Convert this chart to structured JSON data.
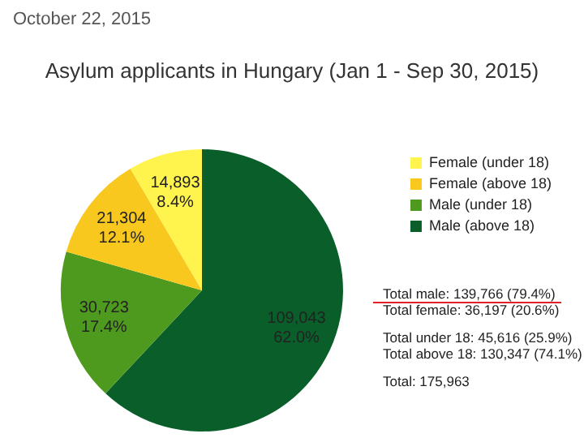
{
  "chart_data": {
    "type": "pie",
    "title": "Asylum applicants in Hungary (Jan 1 - Sep 30, 2015)",
    "subtitle": "October 22, 2015",
    "categories": [
      "Female (under 18)",
      "Female (above 18)",
      "Male (under 18)",
      "Male (above 18)"
    ],
    "values": [
      14893,
      21304,
      30723,
      109043
    ],
    "colors": [
      "#fff34d",
      "#f9c81e",
      "#4e9a1e",
      "#0a5e2a"
    ],
    "value_labels": [
      "14,893\n8.4%",
      "21,304\n12.1%",
      "30,723\n17.4%",
      "109,043\n62.0%"
    ],
    "legend": "right",
    "annotations": [
      "Total male: 139,766 (79.4%)",
      "Total female: 36,197 (20.6%)",
      "Total under 18: 45,616 (25.9%)",
      "Total above 18: 130,347 (74.1%)",
      "Total: 175,963"
    ]
  }
}
